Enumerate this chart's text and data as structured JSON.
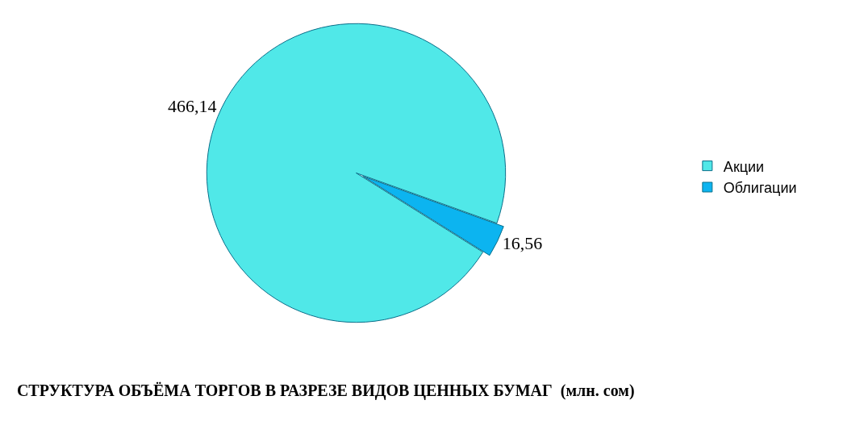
{
  "chart_data": {
    "type": "pie",
    "title": "СТРУКТУРА ОБЪЁМА ТОРГОВ В РАЗРЕЗЕ ВИДОВ ЦЕННЫХ БУМАГ  (млн. сом)",
    "categories": [
      "Акции",
      "Облигации"
    ],
    "values": [
      466.14,
      16.56
    ],
    "value_labels": [
      "466,14",
      "16,56"
    ],
    "colors": [
      "#50e8e8",
      "#0cb4f0"
    ],
    "legend": "right"
  }
}
